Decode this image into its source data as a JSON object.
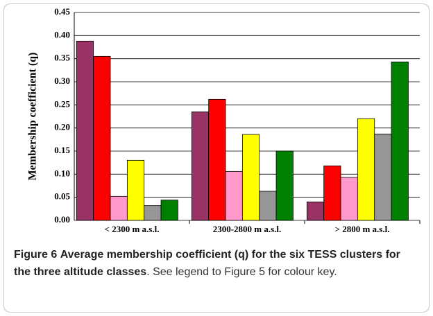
{
  "chart_data": {
    "type": "bar",
    "ylabel": "Membership coefficient (q)",
    "categories": [
      "< 2300 m a.s.l.",
      "2300-2800 m a.s.l.",
      "> 2800 m a.s.l."
    ],
    "series": [
      {
        "color": "#993366",
        "values": [
          0.388,
          0.235,
          0.04
        ]
      },
      {
        "color": "#ff0000",
        "values": [
          0.355,
          0.262,
          0.118
        ]
      },
      {
        "color": "#ff99cc",
        "values": [
          0.052,
          0.106,
          0.093
        ]
      },
      {
        "color": "#ffff00",
        "values": [
          0.13,
          0.186,
          0.22
        ]
      },
      {
        "color": "#969696",
        "values": [
          0.032,
          0.063,
          0.187
        ]
      },
      {
        "color": "#008000",
        "values": [
          0.044,
          0.15,
          0.343
        ]
      }
    ],
    "ylim": [
      0,
      0.45
    ],
    "yticks": [
      {
        "value": 0,
        "label": "0.00"
      },
      0.05,
      {
        "value": 0.1,
        "label": "0.10"
      },
      0.15,
      {
        "value": 0.2,
        "label": "0.20"
      },
      0.25,
      {
        "value": 0.3,
        "label": "0.30"
      },
      0.35,
      {
        "value": 0.4,
        "label": "0.40"
      },
      0.45
    ],
    "grid": true
  },
  "caption": {
    "label": "Figure 6",
    "title": "Average membership coefficient (q) for the six TESS clusters for the three altitude classes",
    "text": ". See legend to Figure 5 for colour key."
  }
}
